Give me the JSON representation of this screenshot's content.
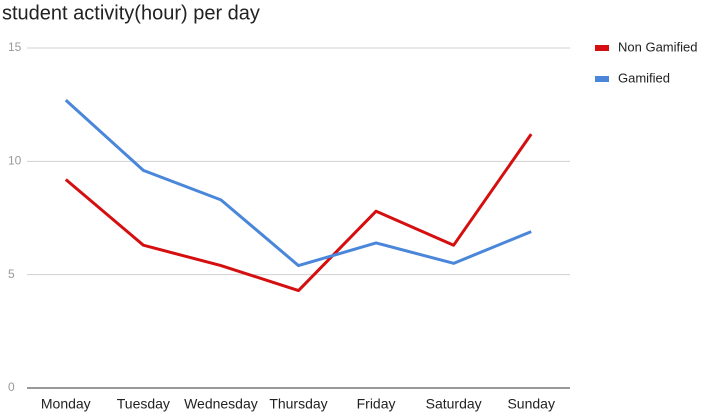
{
  "chart_data": {
    "type": "line",
    "title": "student activity(hour) per day",
    "categories": [
      "Monday",
      "Tuesday",
      "Wednesday",
      "Thursday",
      "Friday",
      "Saturday",
      "Sunday"
    ],
    "series": [
      {
        "name": "Non Gamified",
        "color": "#d50f0f",
        "values": [
          9.2,
          6.3,
          5.4,
          4.3,
          7.8,
          6.3,
          11.2
        ]
      },
      {
        "name": "Gamified",
        "color": "#4a86d9",
        "values": [
          12.7,
          9.6,
          8.3,
          5.4,
          6.4,
          5.5,
          6.9
        ]
      }
    ],
    "ylim": [
      0,
      15
    ],
    "yticks": [
      0,
      5,
      10,
      15
    ],
    "grid": true,
    "legend": "right"
  }
}
